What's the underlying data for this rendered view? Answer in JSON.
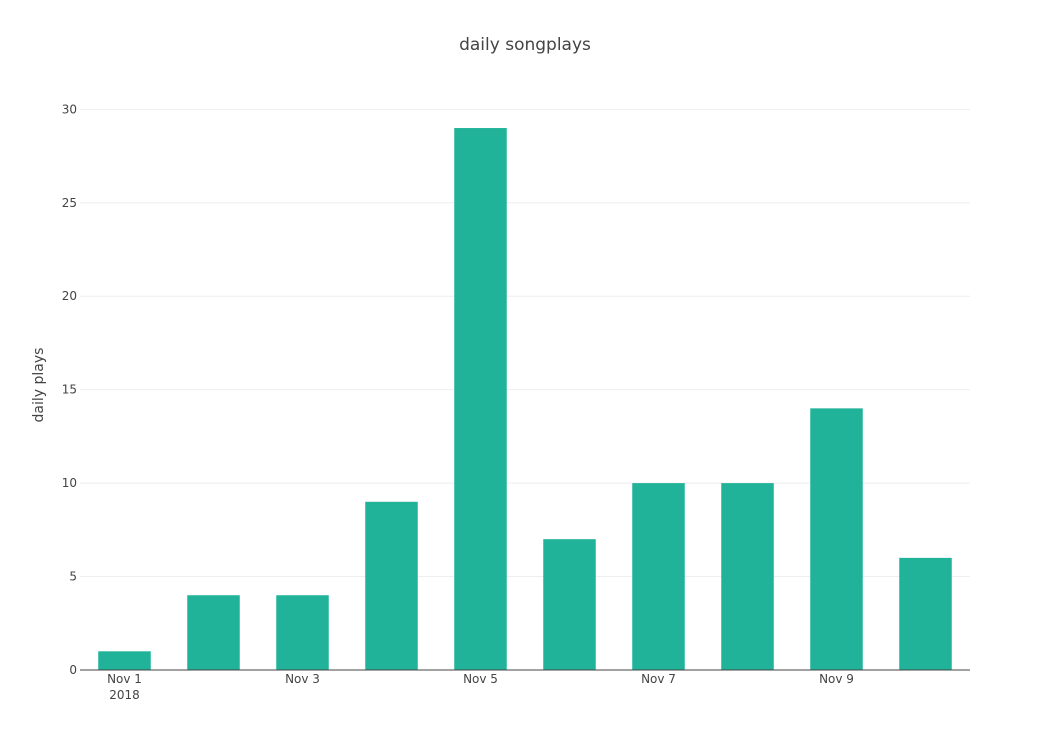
{
  "chart_data": {
    "type": "bar",
    "title": "daily songplays",
    "xlabel": "",
    "ylabel": "daily plays",
    "x": [
      "2018-11-01",
      "2018-11-02",
      "2018-11-03",
      "2018-11-04",
      "2018-11-05",
      "2018-11-06",
      "2018-11-07",
      "2018-11-08",
      "2018-11-09",
      "2018-11-10"
    ],
    "values": [
      1,
      4,
      4,
      9,
      29,
      7,
      10,
      10,
      14,
      6
    ],
    "ylim": [
      0,
      30.5
    ],
    "yticks": [
      0,
      5,
      10,
      15,
      20,
      25,
      30
    ],
    "xticks": [
      {
        "date": "2018-11-01",
        "label": "Nov 1",
        "sublabel": "2018"
      },
      {
        "date": "2018-11-03",
        "label": "Nov 3",
        "sublabel": ""
      },
      {
        "date": "2018-11-05",
        "label": "Nov 5",
        "sublabel": ""
      },
      {
        "date": "2018-11-07",
        "label": "Nov 7",
        "sublabel": ""
      },
      {
        "date": "2018-11-09",
        "label": "Nov 9",
        "sublabel": ""
      }
    ],
    "bar_color": "#20b399",
    "grid": true,
    "legend": "none"
  }
}
